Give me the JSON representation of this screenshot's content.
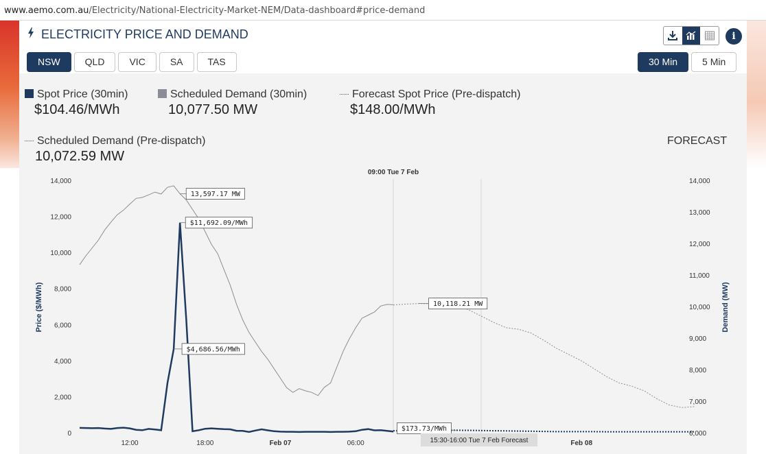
{
  "browser": {
    "url_domain": "www.aemo.com.au",
    "url_path": "/Electricity/National-Electricity-Market-NEM/Data-dashboard#price-demand"
  },
  "header": {
    "title": "ELECTRICITY PRICE AND DEMAND"
  },
  "toolbar": {
    "icons": [
      "download-icon",
      "chart-icon",
      "table-icon"
    ],
    "info_label": "i"
  },
  "regions": [
    "NSW",
    "QLD",
    "VIC",
    "SA",
    "TAS"
  ],
  "selected_region": "NSW",
  "intervals": [
    "30 Min",
    "5 Min"
  ],
  "selected_interval": "30 Min",
  "legend": {
    "spot_price": {
      "label": "Spot Price (30min)",
      "value": "$104.46/MWh"
    },
    "scheduled_demand": {
      "label": "Scheduled Demand (30min)",
      "value": "10,077.50 MW"
    },
    "forecast_spot_price": {
      "label": "Forecast Spot Price (Pre-dispatch)",
      "value": "$148.00/MWh"
    },
    "scheduled_demand_predispatch": {
      "label": "Scheduled Demand (Pre-dispatch)",
      "value": "10,072.59 MW"
    },
    "forecast_label": "FORECAST"
  },
  "colors": {
    "price": "#1e3a5f",
    "demand": "#8c8c96",
    "accent": "#1e3a5f"
  },
  "chart_data": {
    "type": "line",
    "title": "",
    "now_marker": "09:00 Tue 7 Feb",
    "forecast_marker": "15:30-16:00 Tue 7 Feb Forecast",
    "xlabel": "",
    "x_ticks": [
      "12:00",
      "18:00",
      "Feb 07",
      "06:00",
      "Feb 08"
    ],
    "y_left": {
      "label": "Price ($/MWh)",
      "ticks": [
        "0",
        "2,000",
        "4,000",
        "6,000",
        "8,000",
        "10,000",
        "12,000",
        "14,000"
      ],
      "range": [
        0,
        14000
      ]
    },
    "y_right": {
      "label": "Demand (MW)",
      "ticks": [
        "6,000",
        "7,000",
        "8,000",
        "9,000",
        "10,000",
        "11,000",
        "12,000",
        "13,000",
        "14,000"
      ],
      "range": [
        6000,
        14000
      ]
    },
    "series": [
      {
        "name": "Spot Price (30min)",
        "x_hours": [
          8.0,
          8.5,
          9.0,
          9.5,
          10.0,
          10.5,
          11.0,
          11.5,
          12.0,
          12.5,
          13.0,
          13.5,
          14.0,
          14.5,
          15.0,
          15.5,
          16.0,
          16.5,
          17.0,
          17.5,
          18.0,
          18.5,
          19.0,
          19.5,
          20.0,
          20.5,
          21.0,
          21.5,
          22.0,
          22.5,
          23.0,
          23.5,
          24.0,
          24.5,
          25.0,
          25.5,
          26.0,
          26.5,
          27.0,
          27.5,
          28.0,
          28.5,
          29.0,
          29.5,
          30.0,
          30.5,
          31.0,
          31.5,
          32.0,
          32.5,
          33.0
        ],
        "values": [
          310,
          300,
          290,
          300,
          270,
          250,
          300,
          320,
          280,
          200,
          180,
          250,
          220,
          180,
          2800,
          4686.56,
          11692.09,
          6300,
          120,
          180,
          260,
          280,
          260,
          240,
          230,
          150,
          140,
          80,
          160,
          230,
          170,
          120,
          100,
          90,
          90,
          80,
          90,
          90,
          90,
          90,
          80,
          90,
          90,
          100,
          120,
          200,
          240,
          170,
          180,
          140,
          104.46
        ]
      },
      {
        "name": "Forecast Spot Price (Pre-dispatch)",
        "x_hours": [
          33.0,
          34,
          35,
          36,
          37,
          38,
          39,
          40,
          41,
          42,
          43,
          44,
          45,
          46,
          47,
          48,
          49,
          50,
          51,
          52,
          53,
          54,
          55,
          56,
          57
        ],
        "values": [
          148,
          150,
          160,
          165,
          170,
          173.73,
          170,
          160,
          150,
          140,
          130,
          120,
          110,
          100,
          100,
          100,
          100,
          90,
          90,
          90,
          90,
          90,
          90,
          90,
          90
        ]
      },
      {
        "name": "Scheduled Demand (30min)",
        "x_hours": [
          8.0,
          8.5,
          9.0,
          9.5,
          10.0,
          10.5,
          11.0,
          11.5,
          12.0,
          12.5,
          13.0,
          13.5,
          14.0,
          14.5,
          15.0,
          15.5,
          16.0,
          16.5,
          17.0,
          17.5,
          18.0,
          18.5,
          19.0,
          19.5,
          20.0,
          20.5,
          21.0,
          21.5,
          22.0,
          22.5,
          23.0,
          23.5,
          24.0,
          24.5,
          25.0,
          25.5,
          26.0,
          26.5,
          27.0,
          27.5,
          28.0,
          28.5,
          29.0,
          29.5,
          30.0,
          30.5,
          31.0,
          31.5,
          32.0,
          32.5,
          33.0
        ],
        "values": [
          11350,
          11630,
          11880,
          12130,
          12450,
          12700,
          12930,
          13080,
          13270,
          13450,
          13480,
          13560,
          13650,
          13590,
          13800,
          13850,
          13597.17,
          13400,
          13100,
          12800,
          12400,
          12000,
          11700,
          11200,
          10700,
          10100,
          9600,
          9200,
          8900,
          8600,
          8350,
          8050,
          7750,
          7450,
          7300,
          7420,
          7350,
          7300,
          7200,
          7460,
          7600,
          8100,
          8600,
          9000,
          9350,
          9650,
          9750,
          9850,
          10040,
          10090,
          10077.5
        ]
      },
      {
        "name": "Scheduled Demand (Pre-dispatch)",
        "x_hours": [
          33.0,
          34,
          35,
          36,
          37,
          38,
          39,
          40,
          41,
          42,
          43,
          44,
          45,
          46,
          47,
          48,
          49,
          50,
          51,
          52,
          53,
          54,
          55,
          56,
          57
        ],
        "values": [
          10072.59,
          10100,
          10118.21,
          10110,
          10140,
          10060,
          9920,
          9720,
          9520,
          9350,
          9300,
          9180,
          8950,
          8700,
          8500,
          8300,
          8050,
          7800,
          7600,
          7500,
          7350,
          7100,
          6900,
          6820,
          6850
        ]
      }
    ],
    "callouts": [
      "13,597.17 MW",
      "$11,692.09/MWh",
      "$4,686.56/MWh",
      "10,118.21 MW",
      "$173.73/MWh"
    ]
  }
}
